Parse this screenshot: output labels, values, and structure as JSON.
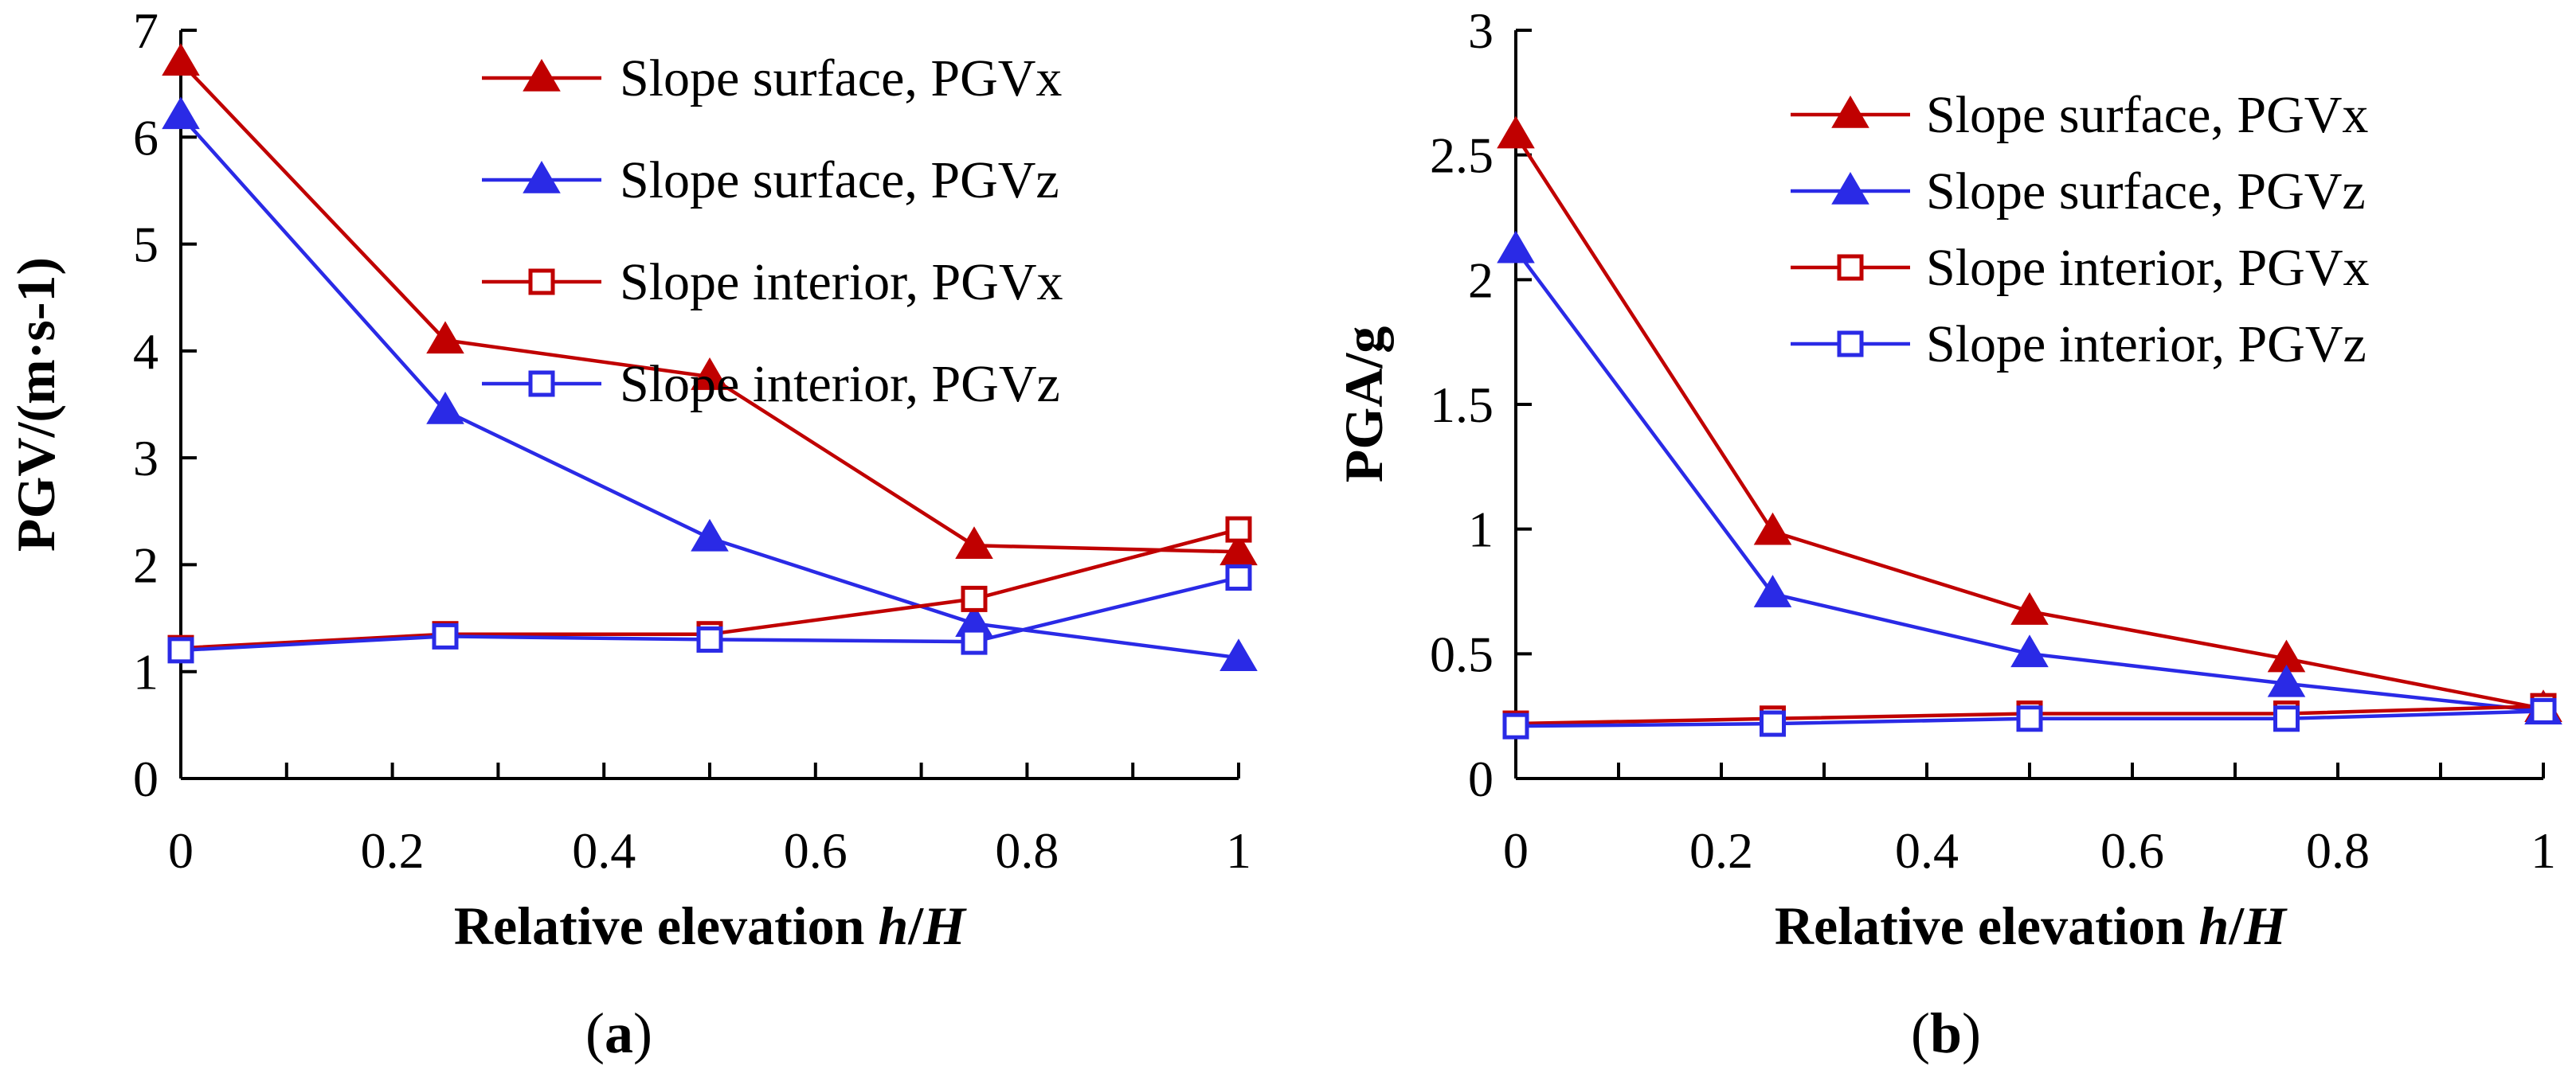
{
  "series_styles": [
    {
      "color": "#c00000",
      "marker": "triangle-filled"
    },
    {
      "color": "#2a2ae6",
      "marker": "triangle-filled"
    },
    {
      "color": "#c00000",
      "marker": "square-open"
    },
    {
      "color": "#2a2ae6",
      "marker": "square-open"
    }
  ],
  "chart_data": [
    {
      "id": "a",
      "type": "line",
      "panel_label_open": "(",
      "panel_label_letter": "a",
      "panel_label_close": ")",
      "xlabel_prefix": "Relative elevation ",
      "xlabel_h": "h",
      "xlabel_slash": "/",
      "xlabel_H": "H",
      "ylabel": "PGV/(m·s-1)",
      "xlim": [
        0,
        1
      ],
      "ylim": [
        0,
        7
      ],
      "xticks": [
        0,
        0.2,
        0.4,
        0.6,
        0.8,
        1
      ],
      "xtick_labels": [
        "0",
        "0.2",
        "0.4",
        "0.6",
        "0.8",
        "1"
      ],
      "yticks": [
        0,
        1,
        2,
        3,
        4,
        5,
        6,
        7
      ],
      "ytick_labels": [
        "0",
        "1",
        "2",
        "3",
        "4",
        "5",
        "6",
        "7"
      ],
      "legend_position": "top-right",
      "x": [
        0,
        0.25,
        0.5,
        0.75,
        1
      ],
      "series": [
        {
          "name": "Slope surface, PGVx",
          "values": [
            6.7,
            4.1,
            3.76,
            2.18,
            2.12
          ]
        },
        {
          "name": "Slope surface, PGVz",
          "values": [
            6.2,
            3.44,
            2.25,
            1.45,
            1.13
          ]
        },
        {
          "name": "Slope interior, PGVx",
          "values": [
            1.22,
            1.35,
            1.35,
            1.68,
            2.33
          ]
        },
        {
          "name": "Slope interior, PGVz",
          "values": [
            1.2,
            1.33,
            1.3,
            1.28,
            1.88
          ]
        }
      ]
    },
    {
      "id": "b",
      "type": "line",
      "panel_label_open": "(",
      "panel_label_letter": "b",
      "panel_label_close": ")",
      "xlabel_prefix": "Relative elevation ",
      "xlabel_h": "h",
      "xlabel_slash": "/",
      "xlabel_H": "H",
      "ylabel": "PGA/g",
      "xlim": [
        0,
        1
      ],
      "ylim": [
        0,
        3
      ],
      "xticks": [
        0,
        0.2,
        0.4,
        0.6,
        0.8,
        1
      ],
      "xtick_labels": [
        "0",
        "0.2",
        "0.4",
        "0.6",
        "0.8",
        "1"
      ],
      "yticks": [
        0,
        0.5,
        1,
        1.5,
        2,
        2.5,
        3
      ],
      "ytick_labels": [
        "0",
        "0.5",
        "1",
        "1.5",
        "2",
        "2.5",
        "3"
      ],
      "legend_position": "top-right",
      "x": [
        0,
        0.25,
        0.5,
        0.75,
        1
      ],
      "series": [
        {
          "name": "Slope surface, PGVx",
          "values": [
            2.58,
            0.99,
            0.67,
            0.48,
            0.28
          ]
        },
        {
          "name": "Slope surface, PGVz",
          "values": [
            2.12,
            0.74,
            0.5,
            0.38,
            0.27
          ]
        },
        {
          "name": "Slope interior, PGVx",
          "values": [
            0.22,
            0.24,
            0.26,
            0.26,
            0.29
          ]
        },
        {
          "name": "Slope interior, PGVz",
          "values": [
            0.21,
            0.22,
            0.24,
            0.24,
            0.27
          ]
        }
      ]
    }
  ]
}
